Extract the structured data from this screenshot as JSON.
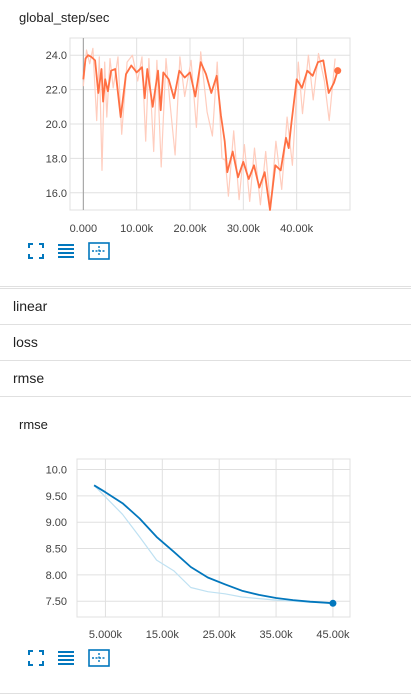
{
  "charts": [
    {
      "title": "global_step/sec",
      "chart_data": {
        "type": "line",
        "title": "global_step/sec",
        "xlabel": "",
        "ylabel": "",
        "xlim": [
          -2500,
          50000
        ],
        "ylim": [
          15.0,
          25.0
        ],
        "x_ticks": [
          "0.000",
          "10.00k",
          "20.00k",
          "30.00k",
          "40.00k"
        ],
        "x_tick_values": [
          0,
          10000,
          20000,
          30000,
          40000
        ],
        "y_ticks": [
          "24.0",
          "22.0",
          "20.0",
          "18.0",
          "16.0"
        ],
        "y_tick_values": [
          24,
          22,
          20,
          18,
          16
        ],
        "grid": true,
        "series": [
          {
            "role": "smoothed",
            "color": "#ff7043",
            "x": [
              0,
              400,
              900,
              1500,
              2200,
              2800,
              3400,
              3700,
              4100,
              4600,
              5200,
              6000,
              7000,
              8000,
              9000,
              10000,
              11000,
              11500,
              12000,
              13000,
              14000,
              14500,
              15000,
              16000,
              17000,
              18000,
              19000,
              20000,
              21000,
              22000,
              23000,
              24000,
              25000,
              25800,
              26500,
              27000,
              28000,
              29000,
              30000,
              31000,
              32000,
              33000,
              34000,
              35000,
              36000,
              37000,
              38000,
              38500,
              39000,
              40000,
              41000,
              42000,
              43000,
              44000,
              45000,
              46000,
              47000,
              47700
            ],
            "y": [
              22.6,
              23.8,
              24.0,
              23.9,
              23.7,
              21.8,
              23.2,
              21.3,
              22.6,
              21.9,
              23.1,
              23.2,
              20.4,
              22.9,
              23.4,
              23.0,
              23.3,
              21.5,
              23.2,
              21.0,
              23.1,
              20.8,
              23.0,
              22.6,
              21.5,
              23.1,
              22.7,
              23.0,
              21.6,
              23.6,
              22.9,
              21.8,
              22.8,
              20.5,
              19.0,
              17.2,
              18.4,
              16.9,
              17.8,
              16.8,
              17.6,
              16.3,
              17.2,
              15.0,
              17.6,
              17.3,
              19.2,
              18.6,
              20.0,
              22.6,
              22.1,
              23.1,
              22.8,
              23.6,
              23.7,
              21.8,
              22.4,
              23.1
            ]
          },
          {
            "role": "raw",
            "color": "#ffcdbe",
            "x": [
              0,
              600,
              1200,
              1800,
              2500,
              3000,
              3500,
              4000,
              4400,
              5000,
              5600,
              6500,
              7200,
              8200,
              9200,
              10200,
              11000,
              11700,
              12300,
              13200,
              13800,
              14600,
              15500,
              16200,
              17200,
              18100,
              19000,
              20200,
              21200,
              22000,
              23200,
              24200,
              25100,
              26000,
              26600,
              27200,
              28200,
              29200,
              30200,
              31200,
              32100,
              33200,
              34200,
              35100,
              36100,
              37200,
              38200,
              39200,
              40300,
              41100,
              42200,
              43100,
              44100,
              45200,
              46100,
              47200
            ],
            "y": [
              22.2,
              24.3,
              23.5,
              24.4,
              20.2,
              23.9,
              17.3,
              23.6,
              20.4,
              23.8,
              22.1,
              23.9,
              19.4,
              23.6,
              24.0,
              22.5,
              23.9,
              19.0,
              23.8,
              18.4,
              23.7,
              17.5,
              23.8,
              21.4,
              18.2,
              23.9,
              21.6,
              23.7,
              19.8,
              24.2,
              20.7,
              19.3,
              23.6,
              18.0,
              17.9,
              15.8,
              19.6,
              15.6,
              18.8,
              15.5,
              18.6,
              15.3,
              18.4,
              15.1,
              19.0,
              16.2,
              20.4,
              17.6,
              23.6,
              20.6,
              24.0,
              21.4,
              24.1,
              22.5,
              20.2,
              23.8
            ]
          }
        ]
      }
    },
    {
      "title": "rmse",
      "chart_data": {
        "type": "line",
        "title": "rmse",
        "xlabel": "",
        "ylabel": "",
        "xlim": [
          0,
          48000
        ],
        "ylim": [
          7.2,
          10.2
        ],
        "x_ticks": [
          "5.000k",
          "15.00k",
          "25.00k",
          "35.00k",
          "45.00k"
        ],
        "x_tick_values": [
          5000,
          15000,
          25000,
          35000,
          45000
        ],
        "y_ticks": [
          "10.0",
          "9.50",
          "9.00",
          "8.50",
          "8.00",
          "7.50"
        ],
        "y_tick_values": [
          10.0,
          9.5,
          9.0,
          8.5,
          8.0,
          7.5
        ],
        "grid": true,
        "series": [
          {
            "role": "smoothed",
            "color": "#0277bd",
            "x": [
              3000,
              5000,
              8000,
              11000,
              14000,
              17000,
              20000,
              23000,
              26000,
              29000,
              32000,
              35000,
              38000,
              41000,
              44000,
              45000
            ],
            "y": [
              9.7,
              9.57,
              9.36,
              9.07,
              8.72,
              8.44,
              8.15,
              7.95,
              7.82,
              7.7,
              7.62,
              7.56,
              7.52,
              7.49,
              7.47,
              7.46
            ]
          },
          {
            "role": "raw",
            "color": "#bfe1f2",
            "x": [
              3000,
              5000,
              8000,
              11000,
              14000,
              17000,
              20000,
              23000,
              26000,
              29000,
              32000,
              35000,
              38000,
              41000,
              44000,
              45000
            ],
            "y": [
              9.7,
              9.48,
              9.15,
              8.72,
              8.28,
              8.08,
              7.76,
              7.68,
              7.64,
              7.58,
              7.55,
              7.52,
              7.5,
              7.48,
              7.47,
              7.46
            ]
          }
        ]
      }
    }
  ],
  "sections": [
    "linear",
    "loss",
    "rmse"
  ],
  "toolbar_icons": [
    "fullscreen-icon",
    "list-icon",
    "fit-domain-icon"
  ],
  "colors": {
    "accent": "#0277bd",
    "series_orange": "#ff7043",
    "series_blue": "#0277bd"
  }
}
